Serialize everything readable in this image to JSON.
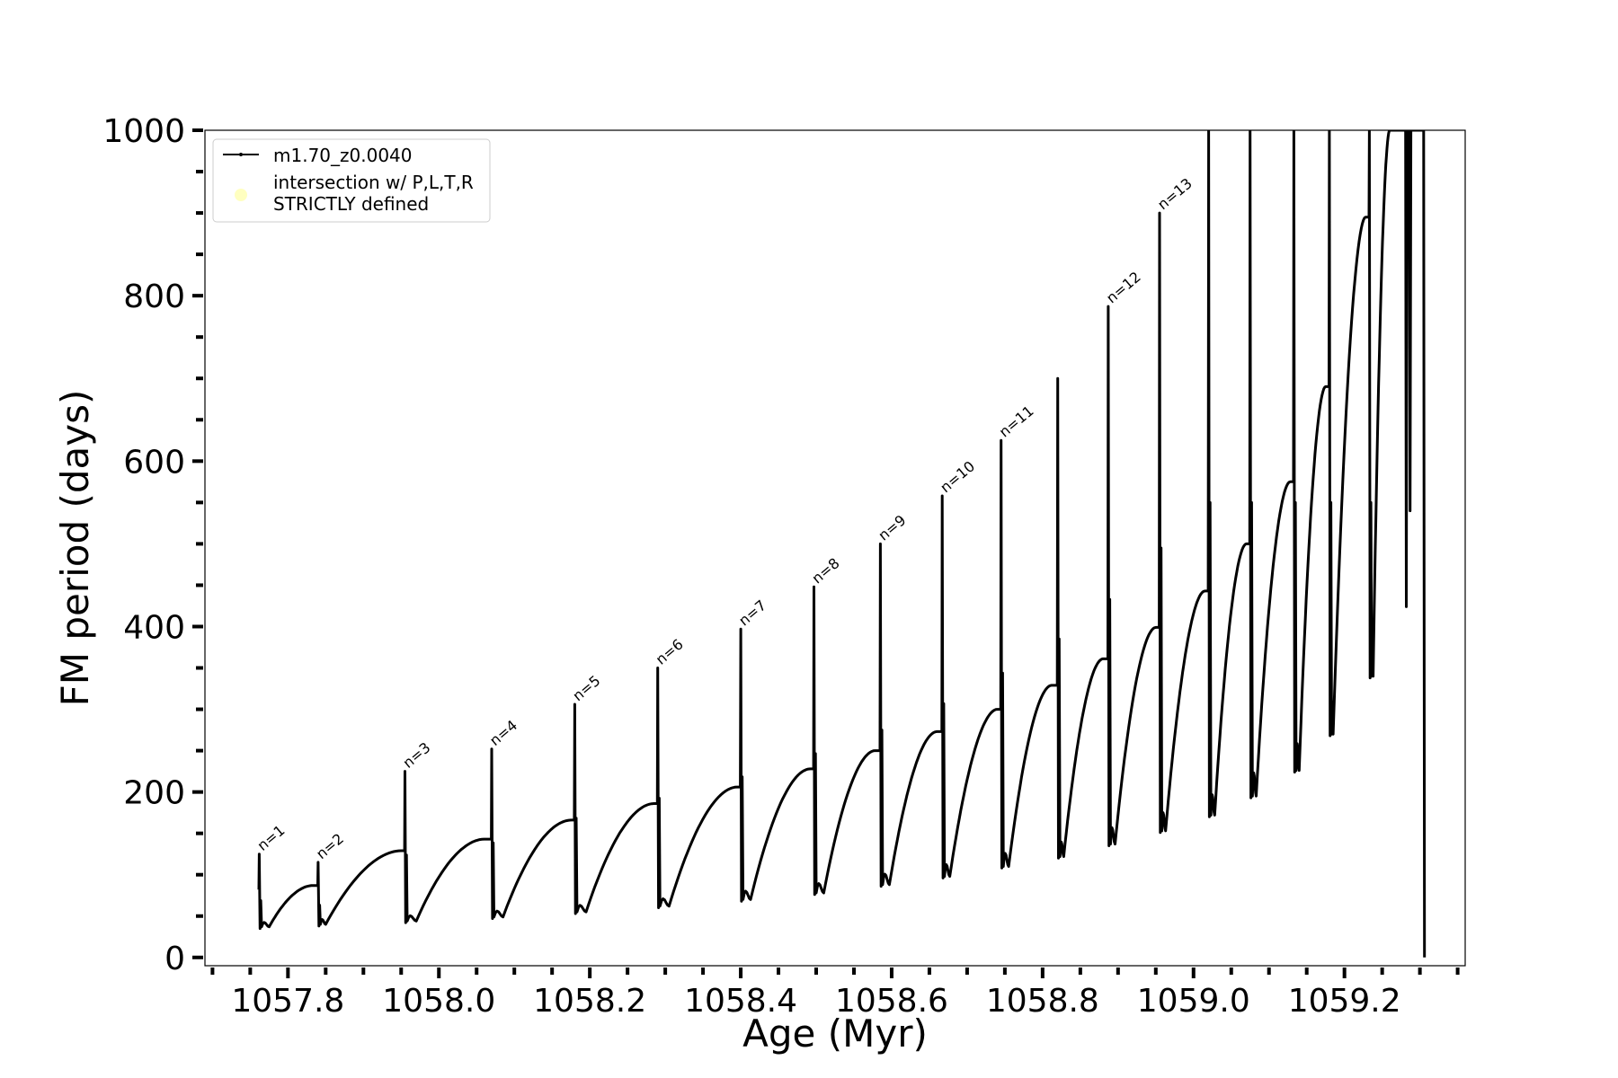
{
  "chart_data": {
    "type": "line",
    "xlabel": "Age (Myr)",
    "ylabel": "FM period (days)",
    "xlim": [
      1057.69,
      1059.36
    ],
    "ylim": [
      -10,
      1000
    ],
    "xticks": [
      1057.8,
      1058.0,
      1058.2,
      1058.4,
      1058.6,
      1058.8,
      1059.0,
      1059.2
    ],
    "xtick_labels": [
      "1057.8",
      "1058.0",
      "1058.2",
      "1058.4",
      "1058.6",
      "1058.8",
      "1059.0",
      "1059.2"
    ],
    "yticks": [
      0,
      200,
      400,
      600,
      800,
      1000
    ],
    "ytick_labels": [
      "0",
      "200",
      "400",
      "600",
      "800",
      "1000"
    ],
    "x_minor_step": 0.05,
    "y_minor_step": 50,
    "grid": false,
    "legend": {
      "placement": "upper-left",
      "entries": [
        {
          "label": "m1.70_z0.0040",
          "marker": "line-dot",
          "color": "#000000"
        },
        {
          "label_lines": [
            "intersection w/ P,L,T,R",
            "STRICTLY defined"
          ],
          "marker": "circle",
          "color": "#ffffc0"
        }
      ]
    },
    "series": [
      {
        "name": "m1.70_z0.0040",
        "color": "#000000",
        "cycles": [
          {
            "x_spike": 1057.762,
            "peak": 125,
            "min": 37,
            "x_min": 1057.775,
            "x_end": 1057.833,
            "end": 87
          },
          {
            "x_spike": 1057.84,
            "peak": 115,
            "min": 40,
            "x_min": 1057.85,
            "x_end": 1057.95,
            "end": 129
          },
          {
            "x_spike": 1057.955,
            "peak": 225,
            "min": 44,
            "x_min": 1057.97,
            "x_end": 1058.06,
            "end": 143
          },
          {
            "x_spike": 1058.07,
            "peak": 252,
            "min": 49,
            "x_min": 1058.085,
            "x_end": 1058.175,
            "end": 166
          },
          {
            "x_spike": 1058.18,
            "peak": 306,
            "min": 55,
            "x_min": 1058.195,
            "x_end": 1058.285,
            "end": 186
          },
          {
            "x_spike": 1058.29,
            "peak": 350,
            "min": 62,
            "x_min": 1058.305,
            "x_end": 1058.395,
            "end": 206
          },
          {
            "x_spike": 1058.4,
            "peak": 397,
            "min": 70,
            "x_min": 1058.413,
            "x_end": 1058.492,
            "end": 228
          },
          {
            "x_spike": 1058.497,
            "peak": 448,
            "min": 78,
            "x_min": 1058.51,
            "x_end": 1058.578,
            "end": 250
          },
          {
            "x_spike": 1058.585,
            "peak": 500,
            "min": 88,
            "x_min": 1058.597,
            "x_end": 1058.66,
            "end": 273
          },
          {
            "x_spike": 1058.667,
            "peak": 558,
            "min": 98,
            "x_min": 1058.677,
            "x_end": 1058.74,
            "end": 300
          },
          {
            "x_spike": 1058.745,
            "peak": 625,
            "min": 110,
            "x_min": 1058.755,
            "x_end": 1058.812,
            "end": 329
          },
          {
            "x_spike": 1058.82,
            "peak": 700,
            "min": 122,
            "x_min": 1058.828,
            "x_end": 1058.88,
            "end": 361
          },
          {
            "x_spike": 1058.887,
            "peak": 787,
            "min": 137,
            "x_min": 1058.896,
            "x_end": 1058.95,
            "end": 399
          },
          {
            "x_spike": 1058.955,
            "peak": 900,
            "min": 153,
            "x_min": 1058.963,
            "x_end": 1059.015,
            "end": 443
          },
          {
            "x_spike": 1059.02,
            "peak": 1000,
            "min": 172,
            "x_min": 1059.028,
            "x_end": 1059.07,
            "end": 500
          },
          {
            "x_spike": 1059.075,
            "peak": 1000,
            "min": 195,
            "x_min": 1059.083,
            "x_end": 1059.128,
            "end": 575
          },
          {
            "x_spike": 1059.133,
            "peak": 1000,
            "min": 226,
            "x_min": 1059.14,
            "x_end": 1059.175,
            "end": 690
          },
          {
            "x_spike": 1059.18,
            "peak": 1000,
            "min": 270,
            "x_min": 1059.185,
            "x_end": 1059.228,
            "end": 895
          },
          {
            "x_spike": 1059.233,
            "peak": 1000,
            "min": 340,
            "x_min": 1059.238,
            "x_end": 1059.26,
            "end": 1000
          }
        ],
        "tail": [
          {
            "x": 1059.281,
            "y": 1000
          },
          {
            "x": 1059.282,
            "y": 424
          },
          {
            "x": 1059.283,
            "y": 1000
          },
          {
            "x": 1059.286,
            "y": 1000
          },
          {
            "x": 1059.287,
            "y": 540
          },
          {
            "x": 1059.288,
            "y": 1000
          },
          {
            "x": 1059.305,
            "y": 1000
          },
          {
            "x": 1059.306,
            "y": 0
          }
        ]
      }
    ],
    "annotations": [
      {
        "text": "n=1",
        "x": 1057.764,
        "y": 126
      },
      {
        "text": "n=2",
        "x": 1057.842,
        "y": 116
      },
      {
        "text": "n=3",
        "x": 1057.957,
        "y": 226
      },
      {
        "text": "n=4",
        "x": 1058.072,
        "y": 253
      },
      {
        "text": "n=5",
        "x": 1058.182,
        "y": 307
      },
      {
        "text": "n=6",
        "x": 1058.292,
        "y": 351
      },
      {
        "text": "n=7",
        "x": 1058.402,
        "y": 398
      },
      {
        "text": "n=8",
        "x": 1058.499,
        "y": 449
      },
      {
        "text": "n=9",
        "x": 1058.587,
        "y": 501
      },
      {
        "text": "n=10",
        "x": 1058.669,
        "y": 559
      },
      {
        "text": "n=11",
        "x": 1058.747,
        "y": 626
      },
      {
        "text": "n=12",
        "x": 1058.889,
        "y": 788
      },
      {
        "text": "n=13",
        "x": 1058.957,
        "y": 901
      }
    ]
  }
}
